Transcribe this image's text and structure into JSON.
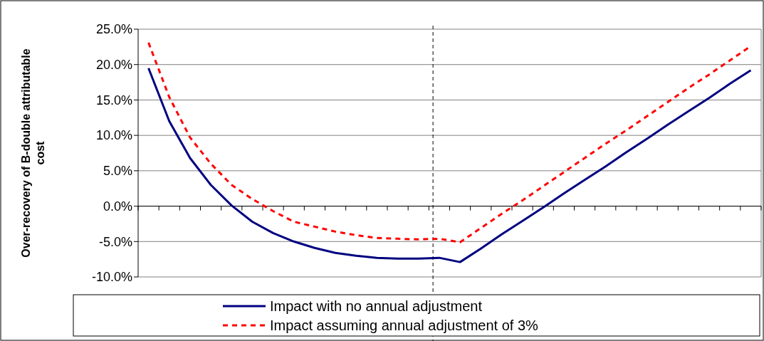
{
  "chart_data": {
    "type": "line",
    "ylabel": "Over-recovery of B-double attributable cost",
    "categories": [
      null,
      null,
      null,
      null,
      null,
      null,
      null,
      null,
      null,
      null,
      null,
      null,
      null,
      null,
      null,
      null,
      null,
      null,
      null,
      null,
      null,
      null,
      null,
      null,
      null,
      null,
      null,
      null,
      null,
      null
    ],
    "ylim": [
      -10,
      25
    ],
    "yticks": [
      {
        "value": -10,
        "label": "-10.0%"
      },
      {
        "value": -5,
        "label": "-5.0%"
      },
      {
        "value": 0,
        "label": "0.0%"
      },
      {
        "value": 5,
        "label": "5.0%"
      },
      {
        "value": 10,
        "label": "10.0%"
      },
      {
        "value": 15,
        "label": "15.0%"
      },
      {
        "value": 20,
        "label": "20.0%"
      },
      {
        "value": 25,
        "label": "25.0%"
      }
    ],
    "tick_labels": "y",
    "grid": "y",
    "legend": "bottom",
    "marker": "none",
    "series": [
      {
        "name": "Impact with no annual adjustment",
        "color": "#000080",
        "line_style": "solid",
        "values": [
          19.5,
          12.0,
          6.8,
          3.0,
          0.1,
          -2.2,
          -3.8,
          -5.0,
          -5.9,
          -6.6,
          -7.0,
          -7.3,
          -7.4,
          -7.4,
          -7.3,
          -7.9,
          -6.0,
          -4.0,
          -2.1,
          -0.2,
          1.8,
          3.7,
          5.6,
          7.6,
          9.5,
          11.5,
          13.4,
          15.3,
          17.3,
          19.2
        ]
      },
      {
        "name": "Impact assuming annual adjustment of 3%",
        "color": "#ff0000",
        "line_style": "dashed",
        "values": [
          23.1,
          15.4,
          9.7,
          6.0,
          3.0,
          1.0,
          -0.7,
          -2.2,
          -2.9,
          -3.6,
          -4.1,
          -4.5,
          -4.6,
          -4.7,
          -4.6,
          -5.1,
          -3.1,
          -1.1,
          0.8,
          2.8,
          4.8,
          6.8,
          8.8,
          10.7,
          12.7,
          14.7,
          16.7,
          18.6,
          20.6,
          22.6
        ]
      }
    ]
  }
}
